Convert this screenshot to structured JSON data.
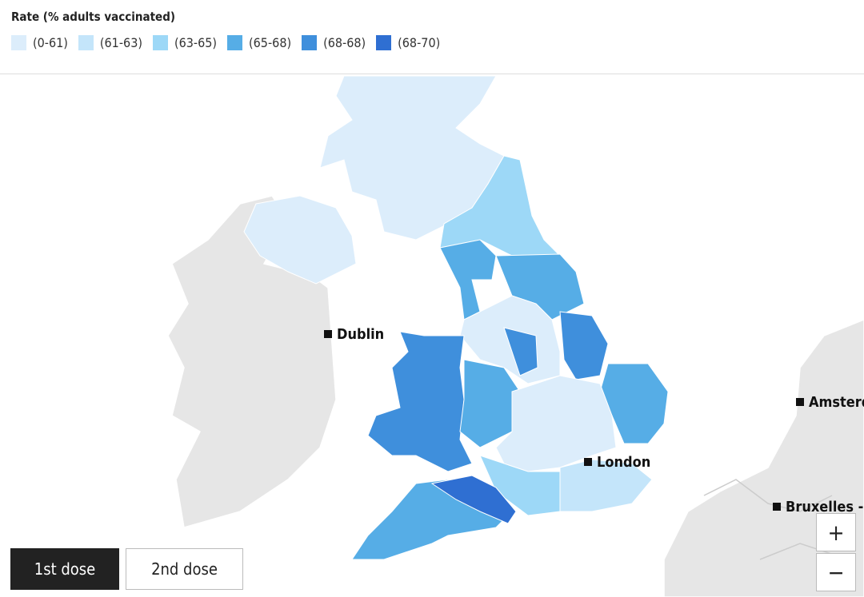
{
  "legend": {
    "title": "Rate (% adults vaccinated)",
    "items": [
      {
        "label": "(0-61)",
        "color": "#dcedfb"
      },
      {
        "label": "(61-63)",
        "color": "#c4e5fa"
      },
      {
        "label": "(63-65)",
        "color": "#9dd8f7"
      },
      {
        "label": "(65-68)",
        "color": "#56ade6"
      },
      {
        "label": "(68-68)",
        "color": "#3f8fdc"
      },
      {
        "label": "(68-70)",
        "color": "#2f6fd2"
      }
    ]
  },
  "cities": [
    {
      "name": "Dublin"
    },
    {
      "name": "London"
    },
    {
      "name": "Amsterdam"
    },
    {
      "name": "Bruxelles - Brussel"
    }
  ],
  "buttons": [
    {
      "label": "1st dose",
      "active": true
    },
    {
      "label": "2nd dose",
      "active": false
    }
  ],
  "zoom": {
    "in": "+",
    "out": "−"
  }
}
